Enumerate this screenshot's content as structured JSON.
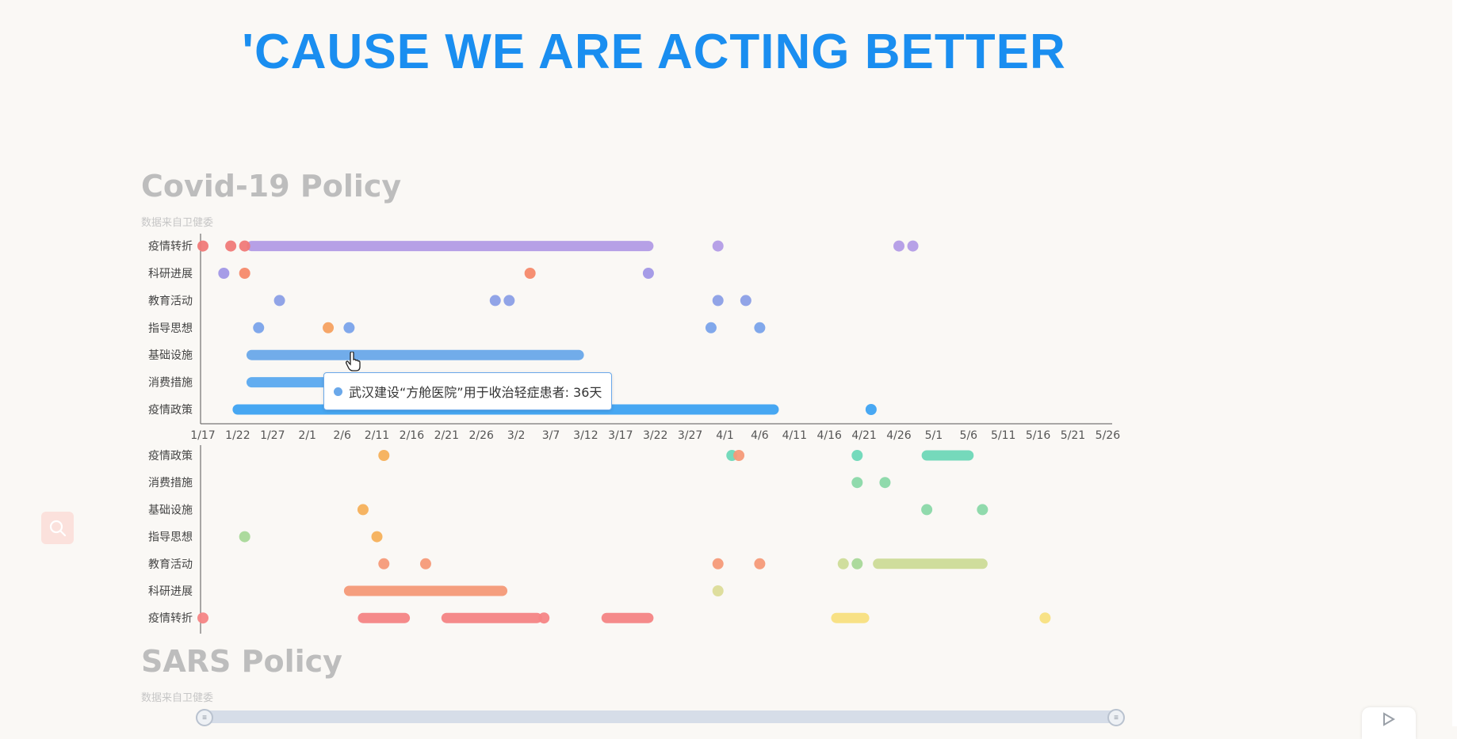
{
  "page": {
    "headline": "'CAUSE WE ARE ACTING BETTER"
  },
  "sections": {
    "covid": {
      "title": "Covid-19 Policy",
      "subtitle": "数据来自卫健委"
    },
    "sars": {
      "title": "SARS Policy",
      "subtitle": "数据来自卫健委"
    }
  },
  "tooltip": {
    "text": "武汉建设“方舱医院”用于收治轻症患者: 36天",
    "color": "#6aa8ea"
  },
  "slider": {
    "handle_left": "≡",
    "handle_right": "≡"
  },
  "icons": {
    "search": "search-icon",
    "player": "play-icon",
    "cursor": "hand-pointer-icon"
  },
  "chart_data": [
    {
      "type": "scatter",
      "title": "Covid-19 Policy",
      "x_ticks": [
        "1/17",
        "1/22",
        "1/27",
        "2/1",
        "2/6",
        "2/11",
        "2/16",
        "2/21",
        "2/26",
        "3/2",
        "3/7",
        "3/12",
        "3/17",
        "3/22",
        "3/27",
        "4/1",
        "4/6",
        "4/11",
        "4/16",
        "4/21",
        "4/26",
        "5/1",
        "5/6",
        "5/11",
        "5/16",
        "5/21",
        "5/26"
      ],
      "categories": [
        "疫情政策",
        "消费措施",
        "基础设施",
        "指导思想",
        "教育活动",
        "科研进展",
        "疫情转折"
      ],
      "x_range_days": [
        0,
        131
      ],
      "colors": {
        "疫情转折": "#b39ce6",
        "科研进展": "#a197e6",
        "教育活动": "#8b9fe6",
        "指导思想": "#7aa3ea",
        "基础设施": "#6aa8ea",
        "消费措施": "#5aaaf0",
        "疫情政策": "#3ea3f2",
        "red": "#f07a78",
        "salmon": "#f5896a",
        "orange": "#f5a160"
      },
      "points": [
        {
          "cat": "疫情转折",
          "day": 0,
          "color": "red"
        },
        {
          "cat": "疫情转折",
          "day": 4,
          "color": "red"
        },
        {
          "cat": "疫情转折",
          "day": 6,
          "color": "red"
        },
        {
          "cat": "疫情转折",
          "day": 74
        },
        {
          "cat": "疫情转折",
          "day": 100
        },
        {
          "cat": "疫情转折",
          "day": 102
        },
        {
          "cat": "科研进展",
          "day": 3
        },
        {
          "cat": "科研进展",
          "day": 6,
          "color": "salmon"
        },
        {
          "cat": "科研进展",
          "day": 47,
          "color": "salmon"
        },
        {
          "cat": "科研进展",
          "day": 64
        },
        {
          "cat": "教育活动",
          "day": 11
        },
        {
          "cat": "教育活动",
          "day": 42
        },
        {
          "cat": "教育活动",
          "day": 44
        },
        {
          "cat": "教育活动",
          "day": 74
        },
        {
          "cat": "教育活动",
          "day": 78
        },
        {
          "cat": "指导思想",
          "day": 8
        },
        {
          "cat": "指导思想",
          "day": 18,
          "color": "orange"
        },
        {
          "cat": "指导思想",
          "day": 21
        },
        {
          "cat": "指导思想",
          "day": 73
        },
        {
          "cat": "指导思想",
          "day": 80
        },
        {
          "cat": "疫情政策",
          "day": 96
        }
      ],
      "ranges": [
        {
          "cat": "疫情转折",
          "start": 7,
          "end": 64
        },
        {
          "cat": "基础设施",
          "start": 7,
          "end": 54
        },
        {
          "cat": "消费措施",
          "start": 7,
          "end": 20
        },
        {
          "cat": "疫情政策",
          "start": 5,
          "end": 82
        }
      ]
    },
    {
      "type": "scatter",
      "title": "",
      "categories": [
        "疫情政策",
        "消费措施",
        "基础设施",
        "指导思想",
        "教育活动",
        "科研进展",
        "疫情转折"
      ],
      "colors": {
        "orange": "#f5b05a",
        "salmon": "#f59a78",
        "red": "#f58585",
        "teal": "#6ed8b8",
        "mint": "#8ad8a8",
        "lightgreen": "#a8d898",
        "olive": "#cddc98",
        "khaki": "#dcdc98",
        "yellow": "#f8e080"
      },
      "points": [
        {
          "cat": "疫情政策",
          "day": 26,
          "color": "orange"
        },
        {
          "cat": "疫情政策",
          "day": 76,
          "color": "teal"
        },
        {
          "cat": "疫情政策",
          "day": 77,
          "color": "salmon"
        },
        {
          "cat": "疫情政策",
          "day": 94,
          "color": "teal"
        },
        {
          "cat": "消费措施",
          "day": 94,
          "color": "mint"
        },
        {
          "cat": "消费措施",
          "day": 98,
          "color": "mint"
        },
        {
          "cat": "基础设施",
          "day": 23,
          "color": "orange"
        },
        {
          "cat": "基础设施",
          "day": 104,
          "color": "mint"
        },
        {
          "cat": "基础设施",
          "day": 112,
          "color": "mint"
        },
        {
          "cat": "指导思想",
          "day": 6,
          "color": "lightgreen"
        },
        {
          "cat": "指导思想",
          "day": 25,
          "color": "orange"
        },
        {
          "cat": "教育活动",
          "day": 26,
          "color": "salmon"
        },
        {
          "cat": "教育活动",
          "day": 32,
          "color": "salmon"
        },
        {
          "cat": "教育活动",
          "day": 74,
          "color": "salmon"
        },
        {
          "cat": "教育活动",
          "day": 80,
          "color": "salmon"
        },
        {
          "cat": "教育活动",
          "day": 92,
          "color": "olive"
        },
        {
          "cat": "教育活动",
          "day": 94,
          "color": "lightgreen"
        },
        {
          "cat": "科研进展",
          "day": 74,
          "color": "khaki"
        },
        {
          "cat": "疫情转折",
          "day": 0,
          "color": "red"
        },
        {
          "cat": "疫情转折",
          "day": 49,
          "color": "red"
        },
        {
          "cat": "疫情转折",
          "day": 121,
          "color": "yellow"
        }
      ],
      "ranges": [
        {
          "cat": "疫情政策",
          "start": 104,
          "end": 110,
          "color": "teal"
        },
        {
          "cat": "教育活动",
          "start": 97,
          "end": 112,
          "color": "olive"
        },
        {
          "cat": "科研进展",
          "start": 21,
          "end": 43,
          "color": "salmon"
        },
        {
          "cat": "疫情转折",
          "start": 23,
          "end": 29,
          "color": "red"
        },
        {
          "cat": "疫情转折",
          "start": 35,
          "end": 48,
          "color": "red"
        },
        {
          "cat": "疫情转折",
          "start": 58,
          "end": 64,
          "color": "red"
        },
        {
          "cat": "疫情转折",
          "start": 91,
          "end": 95,
          "color": "yellow"
        }
      ]
    }
  ]
}
